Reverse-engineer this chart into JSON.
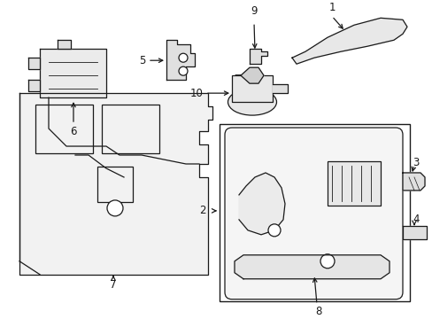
{
  "bg_color": "#ffffff",
  "line_color": "#1a1a1a",
  "fig_width": 4.89,
  "fig_height": 3.6,
  "dpi": 100,
  "font_size": 8.5
}
